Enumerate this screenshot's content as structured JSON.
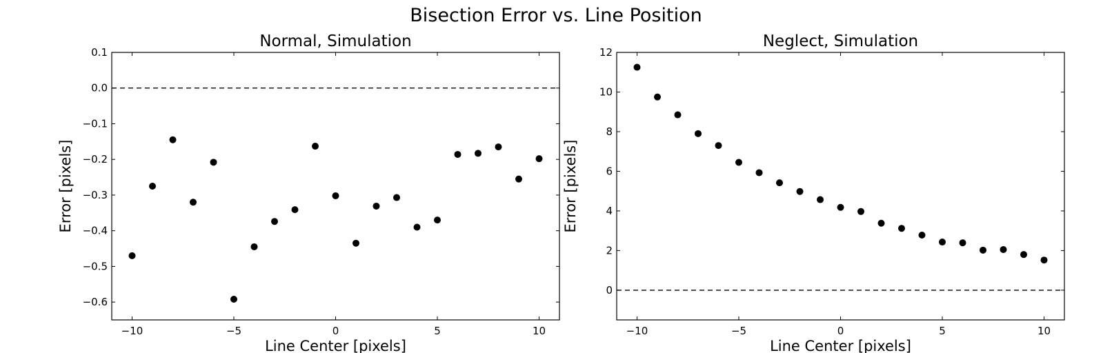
{
  "figure": {
    "suptitle": "Bisection Error vs. Line Position"
  },
  "chart_data": [
    {
      "type": "scatter",
      "title": "Normal, Simulation",
      "xlabel": "Line Center [pixels]",
      "ylabel": "Error [pixels]",
      "xlim": [
        -11,
        11
      ],
      "ylim": [
        -0.65,
        0.1
      ],
      "xticks": [
        -10,
        -5,
        0,
        5,
        10
      ],
      "xtick_labels": [
        "−10",
        "−5",
        "0",
        "5",
        "10"
      ],
      "yticks": [
        -0.6,
        -0.5,
        -0.4,
        -0.3,
        -0.2,
        -0.1,
        0.0,
        0.1
      ],
      "ytick_labels": [
        "−0.6",
        "−0.5",
        "−0.4",
        "−0.3",
        "−0.2",
        "−0.1",
        "0.0",
        "0.1"
      ],
      "grid": false,
      "reference_line": {
        "y": 0,
        "style": "dashed"
      },
      "marker_color": "#000000",
      "x": [
        -10,
        -9,
        -8,
        -7,
        -6,
        -5,
        -4,
        -3,
        -2,
        -1,
        0,
        1,
        2,
        3,
        4,
        5,
        6,
        7,
        8,
        9,
        10
      ],
      "y": [
        -0.47,
        -0.275,
        -0.145,
        -0.32,
        -0.208,
        -0.592,
        -0.445,
        -0.374,
        -0.341,
        -0.163,
        -0.302,
        -0.435,
        -0.331,
        -0.307,
        -0.39,
        -0.37,
        -0.186,
        -0.183,
        -0.165,
        -0.255,
        -0.198
      ]
    },
    {
      "type": "scatter",
      "title": "Neglect, Simulation",
      "xlabel": "Line Center [pixels]",
      "ylabel": "Error [pixels]",
      "xlim": [
        -11,
        11
      ],
      "ylim": [
        -1.5,
        12
      ],
      "xticks": [
        -10,
        -5,
        0,
        5,
        10
      ],
      "xtick_labels": [
        "−10",
        "−5",
        "0",
        "5",
        "10"
      ],
      "yticks": [
        0,
        2,
        4,
        6,
        8,
        10,
        12
      ],
      "ytick_labels": [
        "0",
        "2",
        "4",
        "6",
        "8",
        "10",
        "12"
      ],
      "grid": false,
      "reference_line": {
        "y": 0,
        "style": "dashed"
      },
      "marker_color": "#000000",
      "x": [
        -10,
        -9,
        -8,
        -7,
        -6,
        -5,
        -4,
        -3,
        -2,
        -1,
        0,
        1,
        2,
        3,
        4,
        5,
        6,
        7,
        8,
        9,
        10
      ],
      "y": [
        11.25,
        9.75,
        8.85,
        7.9,
        7.3,
        6.45,
        5.93,
        5.42,
        4.98,
        4.57,
        4.18,
        3.97,
        3.38,
        3.12,
        2.78,
        2.43,
        2.39,
        2.02,
        2.05,
        1.8,
        1.52
      ]
    }
  ]
}
